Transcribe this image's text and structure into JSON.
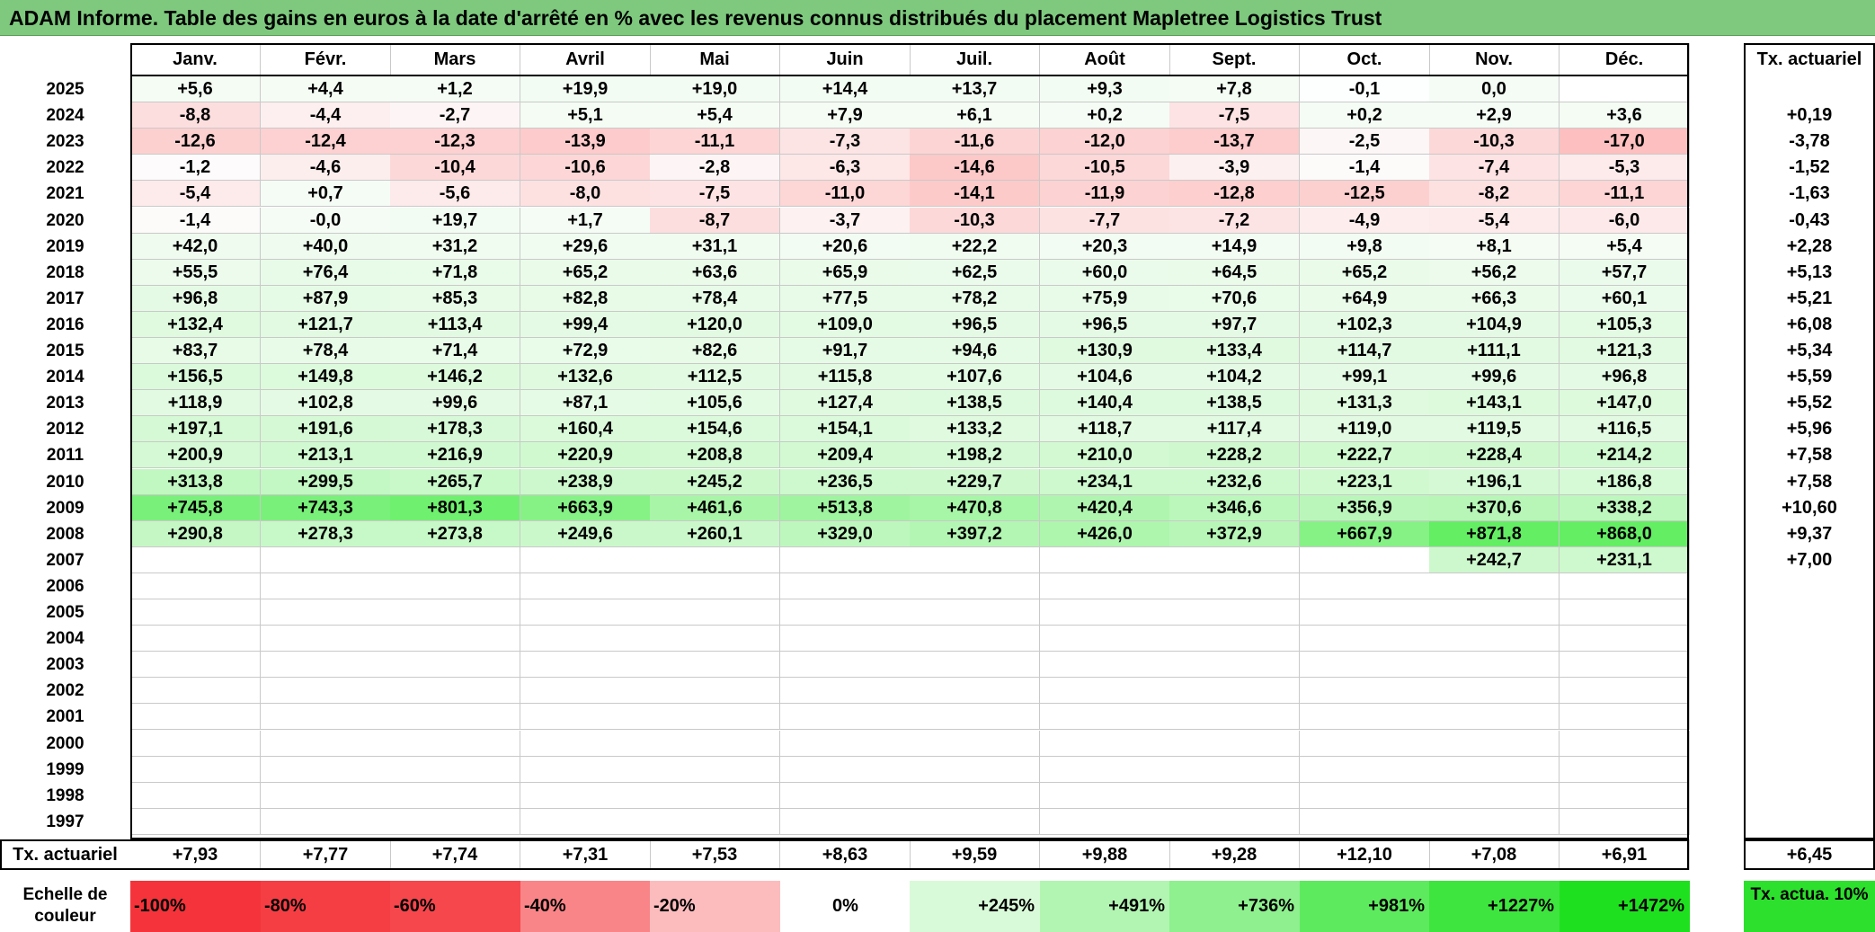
{
  "title": "ADAM Informe. Table des gains en euros à la date d'arrêté en % avec les revenus connus distribués du placement Mapletree Logistics Trust",
  "chart_data": {
    "type": "table",
    "title": "ADAM Informe. Table des gains en euros à la date d'arrêté en % avec les revenus connus distribués du placement Mapletree Logistics Trust",
    "columns": [
      "Janv.",
      "Févr.",
      "Mars",
      "Avril",
      "Mai",
      "Juin",
      "Juil.",
      "Août",
      "Sept.",
      "Oct.",
      "Nov.",
      "Déc."
    ],
    "side_header": "Tx. actuariel",
    "rows": [
      {
        "year": "2025",
        "values": [
          "+5,6",
          "+4,4",
          "+1,2",
          "+19,9",
          "+19,0",
          "+14,4",
          "+13,7",
          "+9,3",
          "+7,8",
          "-0,1",
          "0,0",
          ""
        ],
        "rate": ""
      },
      {
        "year": "2024",
        "values": [
          "-8,8",
          "-4,4",
          "-2,7",
          "+5,1",
          "+5,4",
          "+7,9",
          "+6,1",
          "+0,2",
          "-7,5",
          "+0,2",
          "+2,9",
          "+3,6"
        ],
        "rate": "+0,19"
      },
      {
        "year": "2023",
        "values": [
          "-12,6",
          "-12,4",
          "-12,3",
          "-13,9",
          "-11,1",
          "-7,3",
          "-11,6",
          "-12,0",
          "-13,7",
          "-2,5",
          "-10,3",
          "-17,0"
        ],
        "rate": "-3,78"
      },
      {
        "year": "2022",
        "values": [
          "-1,2",
          "-4,6",
          "-10,4",
          "-10,6",
          "-2,8",
          "-6,3",
          "-14,6",
          "-10,5",
          "-3,9",
          "-1,4",
          "-7,4",
          "-5,3"
        ],
        "rate": "-1,52"
      },
      {
        "year": "2021",
        "values": [
          "-5,4",
          "+0,7",
          "-5,6",
          "-8,0",
          "-7,5",
          "-11,0",
          "-14,1",
          "-11,9",
          "-12,8",
          "-12,5",
          "-8,2",
          "-11,1"
        ],
        "rate": "-1,63"
      },
      {
        "year": "2020",
        "values": [
          "-1,4",
          "-0,0",
          "+19,7",
          "+1,7",
          "-8,7",
          "-3,7",
          "-10,3",
          "-7,7",
          "-7,2",
          "-4,9",
          "-5,4",
          "-6,0"
        ],
        "rate": "-0,43"
      },
      {
        "year": "2019",
        "values": [
          "+42,0",
          "+40,0",
          "+31,2",
          "+29,6",
          "+31,1",
          "+20,6",
          "+22,2",
          "+20,3",
          "+14,9",
          "+9,8",
          "+8,1",
          "+5,4"
        ],
        "rate": "+2,28"
      },
      {
        "year": "2018",
        "values": [
          "+55,5",
          "+76,4",
          "+71,8",
          "+65,2",
          "+63,6",
          "+65,9",
          "+62,5",
          "+60,0",
          "+64,5",
          "+65,2",
          "+56,2",
          "+57,7"
        ],
        "rate": "+5,13"
      },
      {
        "year": "2017",
        "values": [
          "+96,8",
          "+87,9",
          "+85,3",
          "+82,8",
          "+78,4",
          "+77,5",
          "+78,2",
          "+75,9",
          "+70,6",
          "+64,9",
          "+66,3",
          "+60,1"
        ],
        "rate": "+5,21"
      },
      {
        "year": "2016",
        "values": [
          "+132,4",
          "+121,7",
          "+113,4",
          "+99,4",
          "+120,0",
          "+109,0",
          "+96,5",
          "+96,5",
          "+97,7",
          "+102,3",
          "+104,9",
          "+105,3"
        ],
        "rate": "+6,08"
      },
      {
        "year": "2015",
        "values": [
          "+83,7",
          "+78,4",
          "+71,4",
          "+72,9",
          "+82,6",
          "+91,7",
          "+94,6",
          "+130,9",
          "+133,4",
          "+114,7",
          "+111,1",
          "+121,3"
        ],
        "rate": "+5,34"
      },
      {
        "year": "2014",
        "values": [
          "+156,5",
          "+149,8",
          "+146,2",
          "+132,6",
          "+112,5",
          "+115,8",
          "+107,6",
          "+104,6",
          "+104,2",
          "+99,1",
          "+99,6",
          "+96,8"
        ],
        "rate": "+5,59"
      },
      {
        "year": "2013",
        "values": [
          "+118,9",
          "+102,8",
          "+99,6",
          "+87,1",
          "+105,6",
          "+127,4",
          "+138,5",
          "+140,4",
          "+138,5",
          "+131,3",
          "+143,1",
          "+147,0"
        ],
        "rate": "+5,52"
      },
      {
        "year": "2012",
        "values": [
          "+197,1",
          "+191,6",
          "+178,3",
          "+160,4",
          "+154,6",
          "+154,1",
          "+133,2",
          "+118,7",
          "+117,4",
          "+119,0",
          "+119,5",
          "+116,5"
        ],
        "rate": "+5,96"
      },
      {
        "year": "2011",
        "values": [
          "+200,9",
          "+213,1",
          "+216,9",
          "+220,9",
          "+208,8",
          "+209,4",
          "+198,2",
          "+210,0",
          "+228,2",
          "+222,7",
          "+228,4",
          "+214,2"
        ],
        "rate": "+7,58"
      },
      {
        "year": "2010",
        "values": [
          "+313,8",
          "+299,5",
          "+265,7",
          "+238,9",
          "+245,2",
          "+236,5",
          "+229,7",
          "+234,1",
          "+232,6",
          "+223,1",
          "+196,1",
          "+186,8"
        ],
        "rate": "+7,58"
      },
      {
        "year": "2009",
        "values": [
          "+745,8",
          "+743,3",
          "+801,3",
          "+663,9",
          "+461,6",
          "+513,8",
          "+470,8",
          "+420,4",
          "+346,6",
          "+356,9",
          "+370,6",
          "+338,2"
        ],
        "rate": "+10,60"
      },
      {
        "year": "2008",
        "values": [
          "+290,8",
          "+278,3",
          "+273,8",
          "+249,6",
          "+260,1",
          "+329,0",
          "+397,2",
          "+426,0",
          "+372,9",
          "+667,9",
          "+871,8",
          "+868,0"
        ],
        "rate": "+9,37"
      },
      {
        "year": "2007",
        "values": [
          "",
          "",
          "",
          "",
          "",
          "",
          "",
          "",
          "",
          "",
          "+242,7",
          "+231,1"
        ],
        "rate": "+7,00"
      },
      {
        "year": "2006",
        "values": [
          "",
          "",
          "",
          "",
          "",
          "",
          "",
          "",
          "",
          "",
          "",
          ""
        ],
        "rate": ""
      },
      {
        "year": "2005",
        "values": [
          "",
          "",
          "",
          "",
          "",
          "",
          "",
          "",
          "",
          "",
          "",
          ""
        ],
        "rate": ""
      },
      {
        "year": "2004",
        "values": [
          "",
          "",
          "",
          "",
          "",
          "",
          "",
          "",
          "",
          "",
          "",
          ""
        ],
        "rate": ""
      },
      {
        "year": "2003",
        "values": [
          "",
          "",
          "",
          "",
          "",
          "",
          "",
          "",
          "",
          "",
          "",
          ""
        ],
        "rate": ""
      },
      {
        "year": "2002",
        "values": [
          "",
          "",
          "",
          "",
          "",
          "",
          "",
          "",
          "",
          "",
          "",
          ""
        ],
        "rate": ""
      },
      {
        "year": "2001",
        "values": [
          "",
          "",
          "",
          "",
          "",
          "",
          "",
          "",
          "",
          "",
          "",
          ""
        ],
        "rate": ""
      },
      {
        "year": "2000",
        "values": [
          "",
          "",
          "",
          "",
          "",
          "",
          "",
          "",
          "",
          "",
          "",
          ""
        ],
        "rate": ""
      },
      {
        "year": "1999",
        "values": [
          "",
          "",
          "",
          "",
          "",
          "",
          "",
          "",
          "",
          "",
          "",
          ""
        ],
        "rate": ""
      },
      {
        "year": "1998",
        "values": [
          "",
          "",
          "",
          "",
          "",
          "",
          "",
          "",
          "",
          "",
          "",
          ""
        ],
        "rate": ""
      },
      {
        "year": "1997",
        "values": [
          "",
          "",
          "",
          "",
          "",
          "",
          "",
          "",
          "",
          "",
          "",
          ""
        ],
        "rate": ""
      }
    ],
    "totals": {
      "label": "Tx. actuariel",
      "values": [
        "+7,93",
        "+7,77",
        "+7,74",
        "+7,31",
        "+7,53",
        "+8,63",
        "+9,59",
        "+9,88",
        "+9,28",
        "+12,10",
        "+7,08",
        "+6,91"
      ],
      "overall": "+6,45"
    },
    "color_scale": {
      "label": "Echelle de couleur",
      "steps": [
        {
          "text": "-100%",
          "color": "#f4343a"
        },
        {
          "text": "-80%",
          "color": "#f53e44"
        },
        {
          "text": "-60%",
          "color": "#f6474d"
        },
        {
          "text": "-40%",
          "color": "#fa8588"
        },
        {
          "text": "-20%",
          "color": "#fcbcbe"
        },
        {
          "text": "0%",
          "color": "#ffffff"
        },
        {
          "text": "+245%",
          "color": "#d9fad9"
        },
        {
          "text": "+491%",
          "color": "#b2f5b2"
        },
        {
          "text": "+736%",
          "color": "#8ef08e"
        },
        {
          "text": "+981%",
          "color": "#5eea5e"
        },
        {
          "text": "+1227%",
          "color": "#3fe53f"
        },
        {
          "text": "+1472%",
          "color": "#1fe01f"
        }
      ],
      "side_label": "Tx. actua. 10%",
      "side_color": "#2de02d"
    }
  }
}
